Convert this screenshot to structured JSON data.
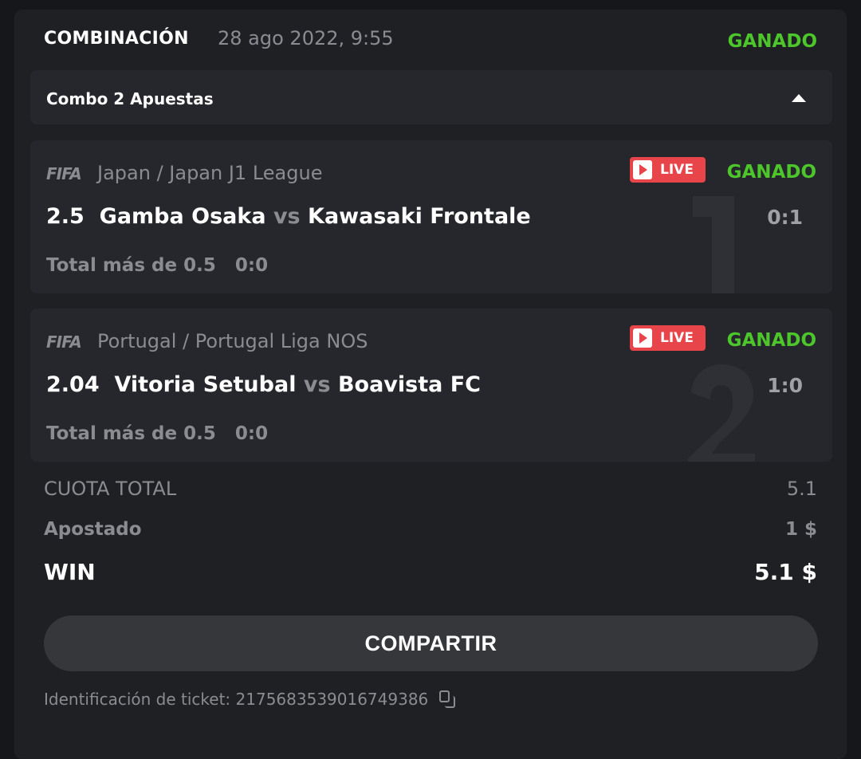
{
  "header": {
    "title": "COMBINACIÓN",
    "date": "28 ago 2022, 9:55",
    "status": "GANADO"
  },
  "combo": {
    "label": "Combo 2 Apuestas",
    "toggle_icon": "caret-up-icon"
  },
  "bets": [
    {
      "index": "1",
      "sport_icon": "FIFA",
      "league": "Japan / Japan J1 League",
      "live": "LIVE",
      "status": "GANADO",
      "odds": "2.5",
      "home": "Gamba Osaka",
      "vs": "vs",
      "away": "Kawasaki Frontale",
      "score": "0:1",
      "market": "Total más de 0.5",
      "market_score": "0:0"
    },
    {
      "index": "2",
      "sport_icon": "FIFA",
      "league": "Portugal / Portugal Liga NOS",
      "live": "LIVE",
      "status": "GANADO",
      "odds": "2.04",
      "home": "Vitoria Setubal",
      "vs": "vs",
      "away": "Boavista FC",
      "score": "1:0",
      "market": "Total más de 0.5",
      "market_score": "0:0"
    }
  ],
  "summary": {
    "total_odds_label": "CUOTA TOTAL",
    "total_odds": "5.1",
    "staked_label": "Apostado",
    "staked": "1 $",
    "win_label": "WIN",
    "win": "5.1 $"
  },
  "share_label": "COMPARTIR",
  "ticket": {
    "label": "Identificación de ticket:",
    "id": "2175683539016749386"
  },
  "colors": {
    "win": "#4cc62b",
    "live": "#e8454a"
  }
}
